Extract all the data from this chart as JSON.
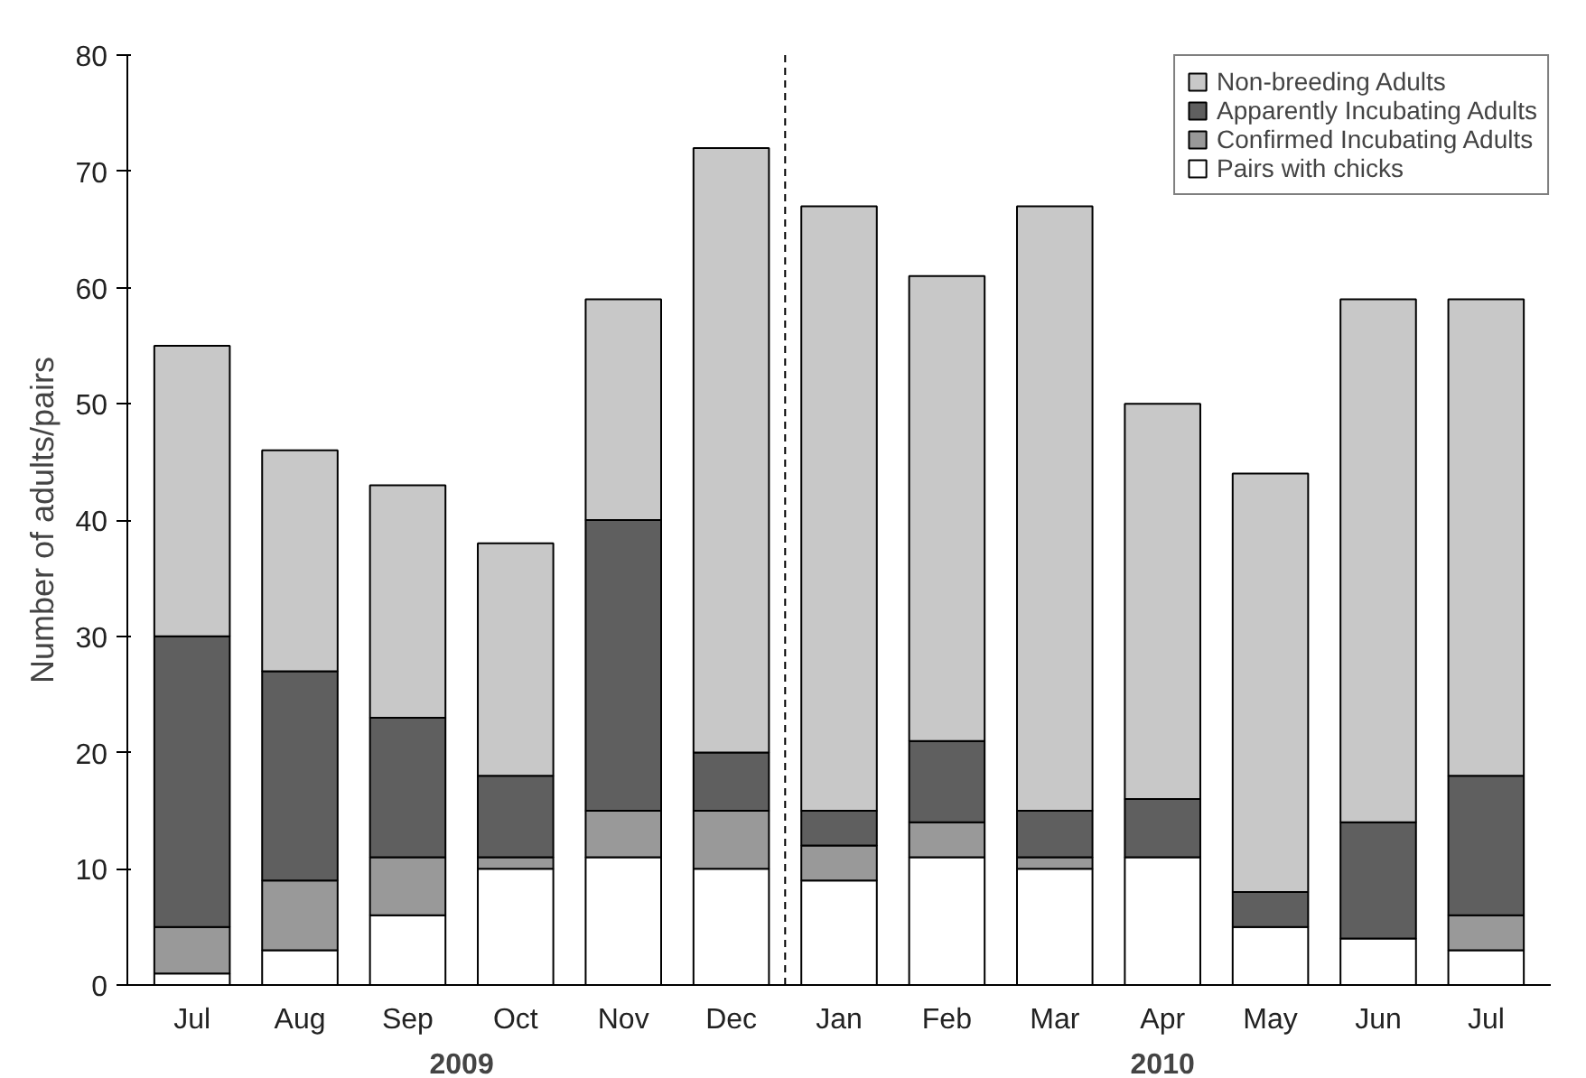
{
  "chart_data": {
    "type": "bar",
    "stacked": true,
    "ylabel": "Number of adults/pairs",
    "categories": [
      "Jul",
      "Aug",
      "Sep",
      "Oct",
      "Nov",
      "Dec",
      "Jan",
      "Feb",
      "Mar",
      "Apr",
      "May",
      "Jun",
      "Jul"
    ],
    "series": [
      {
        "name": "Pairs with chicks",
        "color": "#ffffff",
        "values": [
          1,
          3,
          6,
          10,
          11,
          10,
          9,
          11,
          10,
          11,
          5,
          4,
          3
        ]
      },
      {
        "name": "Confirmed Incubating Adults",
        "color": "#999999",
        "values": [
          4,
          6,
          5,
          1,
          4,
          5,
          3,
          3,
          1,
          null,
          null,
          null,
          3
        ]
      },
      {
        "name": "Apparently Incubating Adults",
        "color": "#5f5f5f",
        "values": [
          25,
          18,
          12,
          7,
          25,
          5,
          3,
          7,
          4,
          5,
          3,
          10,
          12
        ]
      },
      {
        "name": "Non-breeding Adults",
        "color": "#c8c8c8",
        "values": [
          25,
          19,
          20,
          20,
          19,
          52,
          52,
          40,
          52,
          34,
          36,
          45,
          41
        ]
      }
    ],
    "ylim": [
      0,
      80
    ],
    "yticks": [
      0,
      10,
      20,
      30,
      40,
      50,
      60,
      70,
      80
    ],
    "annotations": [
      "2009",
      "2010"
    ],
    "legend": "top right",
    "grid": false
  }
}
